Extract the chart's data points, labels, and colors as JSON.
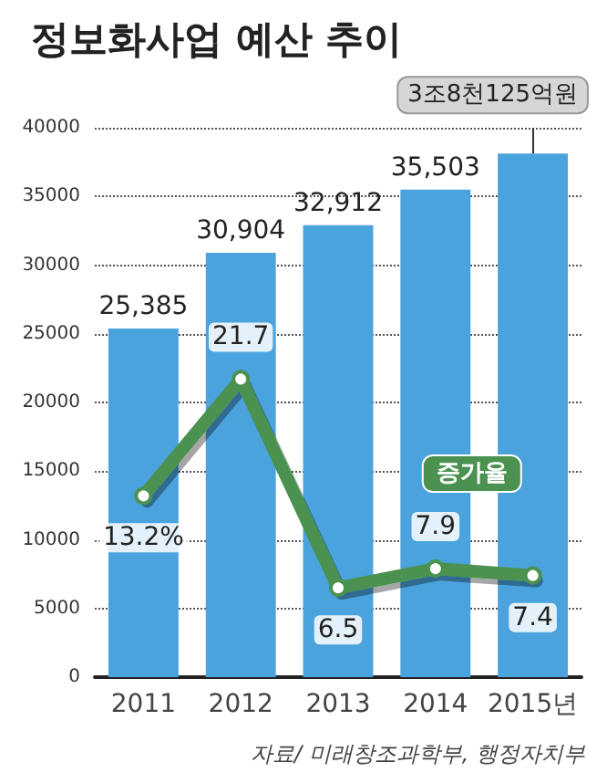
{
  "chart_data": {
    "type": "bar",
    "title": "정보화사업 예산 추이",
    "categories": [
      "2011",
      "2012",
      "2013",
      "2014",
      "2015년"
    ],
    "series": [
      {
        "color": "#4ba3dd",
        "values": [
          25385,
          30904,
          32912,
          35503,
          38125
        ],
        "value_labels": [
          "25,385",
          "30,904",
          "32,912",
          "35,503",
          null
        ]
      },
      {
        "type": "line",
        "name": "증가율",
        "color": "#4b9150",
        "axis": "y2",
        "values": [
          13.2,
          21.7,
          6.5,
          7.9,
          7.4
        ],
        "value_labels": [
          "13.2%",
          "21.7",
          "6.5",
          "7.9",
          "7.4"
        ]
      }
    ],
    "ylim": [
      0,
      40000
    ],
    "yticks": [
      0,
      5000,
      10000,
      15000,
      20000,
      25000,
      30000,
      35000,
      40000
    ],
    "y2lim": [
      0,
      40
    ],
    "grid": "y",
    "legend": false,
    "marker": "circle",
    "line_style": "solid",
    "annotations": [
      {
        "text": "3조8천125억원",
        "x": "2015년",
        "y": 38125
      },
      "자료/ 미래창조과학부, 행정자치부"
    ]
  }
}
